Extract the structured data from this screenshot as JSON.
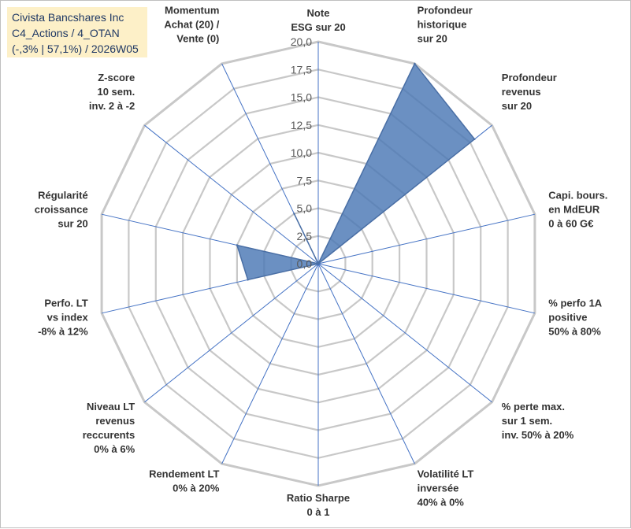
{
  "title_lines": [
    "Civista Bancshares Inc",
    "C4_Actions / 4_OTAN",
    "(-,3% | 57,1%) / 2026W05"
  ],
  "colors": {
    "grid": "#c8c8c8",
    "spoke": "#4472c4",
    "series_fill": "#4a77b4",
    "series_stroke": "#4a6fa5",
    "title_bg": "#fdf0c8"
  },
  "chart_data": {
    "type": "radar",
    "r_min": 0,
    "r_max": 20,
    "r_step": 2.5,
    "tick_labels": [
      "0,0",
      "2,5",
      "5,0",
      "7,5",
      "10,0",
      "12,5",
      "15,0",
      "17,5",
      "20,0"
    ],
    "grid": true,
    "axes": [
      {
        "label": [
          "Note",
          "ESG sur 20"
        ],
        "value": 0
      },
      {
        "label": [
          "Profondeur",
          "historique",
          "sur 20"
        ],
        "value": 20
      },
      {
        "label": [
          "Profondeur",
          "revenus",
          "sur 20"
        ],
        "value": 18
      },
      {
        "label": [
          "Capi. bours.",
          "en MdEUR",
          "0 à 60 G€"
        ],
        "value": 0
      },
      {
        "label": [
          "% perfo 1A",
          "positive",
          "50% à 80%"
        ],
        "value": 0
      },
      {
        "label": [
          "% perte max.",
          "sur 1 sem.",
          "inv. 50% à 20%"
        ],
        "value": 0
      },
      {
        "label": [
          "Volatilité LT",
          "inversée",
          "40% à 0%"
        ],
        "value": 0
      },
      {
        "label": [
          "Ratio Sharpe",
          "0 à 1"
        ],
        "value": 0
      },
      {
        "label": [
          "Rendement LT",
          "0% à 20%"
        ],
        "value": 0
      },
      {
        "label": [
          "Niveau LT",
          "revenus",
          "reccurents",
          "0% à 6%"
        ],
        "value": 0
      },
      {
        "label": [
          "Perfo. LT",
          "vs index",
          "-8% à 12%"
        ],
        "value": 6.5
      },
      {
        "label": [
          "Régularité",
          "croissance",
          "sur 20"
        ],
        "value": 7.5
      },
      {
        "label": [
          "Z-score",
          "10 sem.",
          "inv. 2 à -2"
        ],
        "value": 0
      },
      {
        "label": [
          "Momentum",
          "Achat (20) /",
          "Vente (0)"
        ],
        "value": 5
      }
    ]
  }
}
